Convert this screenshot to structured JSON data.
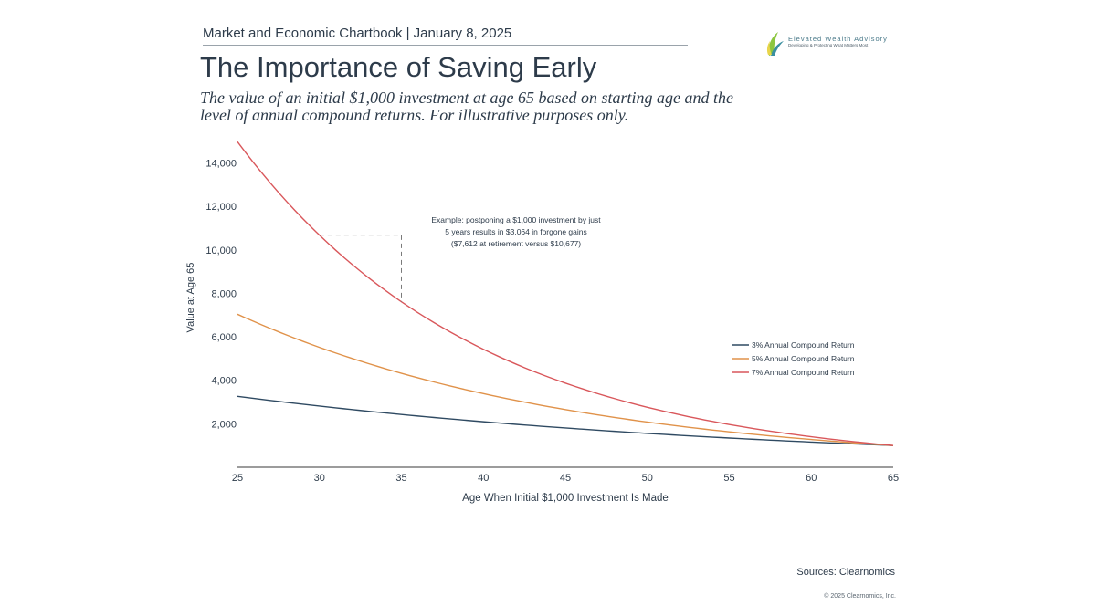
{
  "header": {
    "line": "Market and Economic Chartbook | January 8, 2025"
  },
  "logo": {
    "name": "Elevated Wealth Advisory",
    "tagline": "Developing & Protecting What Matters Most",
    "colors": {
      "leaf_green": "#8cc63f",
      "leaf_teal": "#3a8fa0",
      "leaf_yellow": "#e9d54a"
    }
  },
  "title": "The Importance of Saving Early",
  "subtitle": {
    "line1": "The value of an initial $1,000 investment at age 65 based on starting age and the",
    "line2": "level of annual compound returns. For illustrative purposes only."
  },
  "chart_data": {
    "type": "line",
    "title": "The Importance of Saving Early",
    "xlabel": "Age When Initial $1,000 Investment Is Made",
    "ylabel": "Value at Age 65",
    "xlim": [
      25,
      65
    ],
    "ylim": [
      0,
      15000
    ],
    "x_ticks": [
      25,
      30,
      35,
      40,
      45,
      50,
      55,
      60,
      65
    ],
    "x_tick_labels": [
      "25",
      "30",
      "35",
      "40",
      "45",
      "50",
      "55",
      "60",
      "65"
    ],
    "y_ticks": [
      2000,
      4000,
      6000,
      8000,
      10000,
      12000,
      14000
    ],
    "y_tick_labels": [
      "2,000",
      "4,000",
      "6,000",
      "8,000",
      "10,000",
      "12,000",
      "14,000"
    ],
    "grid": false,
    "legend_position": "right",
    "x": [
      25,
      30,
      35,
      40,
      45,
      50,
      55,
      60,
      65
    ],
    "series": [
      {
        "name": "3% Annual Compound Return",
        "color": "#2f4a62",
        "values": [
          3262,
          2814,
          2427,
          2094,
          1806,
          1558,
          1344,
          1159,
          1000
        ]
      },
      {
        "name": "5% Annual Compound Return",
        "color": "#e0924a",
        "values": [
          7040,
          5516,
          4322,
          3386,
          2653,
          2079,
          1629,
          1276,
          1000
        ]
      },
      {
        "name": "7% Annual Compound Return",
        "color": "#d9575b",
        "values": [
          14974,
          10677,
          7612,
          5427,
          3870,
          2759,
          1967,
          1403,
          1000
        ]
      }
    ],
    "annotation": {
      "lines": [
        "Example: postponing a $1,000 investment by just",
        "5 years results in $3,064 in forgone gains",
        "($7,612 at retirement versus $10,677)"
      ],
      "from_age": 30,
      "to_age": 35,
      "value_high": 10677,
      "value_low": 7612
    }
  },
  "footer": {
    "sources": "Sources: Clearnomics",
    "copyright": "© 2025 Clearnomics, Inc."
  }
}
